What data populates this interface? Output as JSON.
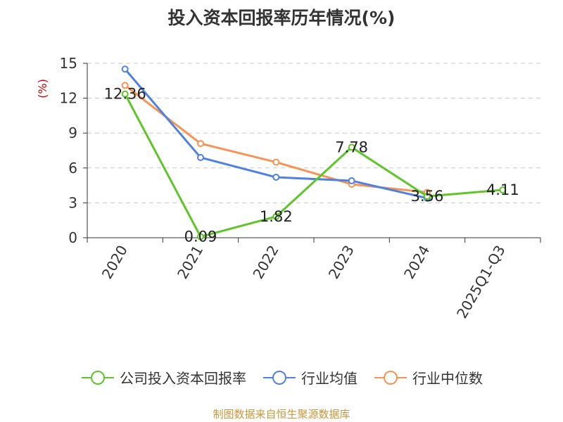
{
  "title": "投入资本回报率历年情况(%)",
  "source": "制图数据来自恒生聚源数据库",
  "colors": {
    "company": "#5fc529",
    "industry_avg": "#4f81e0",
    "industry_median": "#f79455",
    "unit": "#cc0000",
    "grid": "#c8c8c8",
    "axis": "#333333"
  },
  "chart_data": {
    "type": "line",
    "title": "投入资本回报率历年情况(%)",
    "ylabel": "(%)",
    "xlabel": "",
    "categories": [
      "2020",
      "2021",
      "2022",
      "2023",
      "2024",
      "2025Q1-Q3"
    ],
    "ylim": [
      0,
      15
    ],
    "yticks": [
      0,
      3,
      6,
      9,
      12,
      15
    ],
    "grid": "horizontal dashed",
    "legend_position": "bottom",
    "series": [
      {
        "name": "公司投入资本回报率",
        "values": [
          12.36,
          0.09,
          1.82,
          7.78,
          3.56,
          4.11
        ],
        "labels": [
          "12.36",
          "0.09",
          "1.82",
          "7.78",
          "3.56",
          "4.11"
        ],
        "color_key": "company"
      },
      {
        "name": "行业均值",
        "values": [
          14.5,
          6.9,
          5.2,
          4.9,
          3.4,
          null
        ],
        "color_key": "industry_avg"
      },
      {
        "name": "行业中位数",
        "values": [
          13.1,
          8.1,
          6.5,
          4.6,
          3.9,
          null
        ],
        "color_key": "industry_median"
      }
    ]
  }
}
